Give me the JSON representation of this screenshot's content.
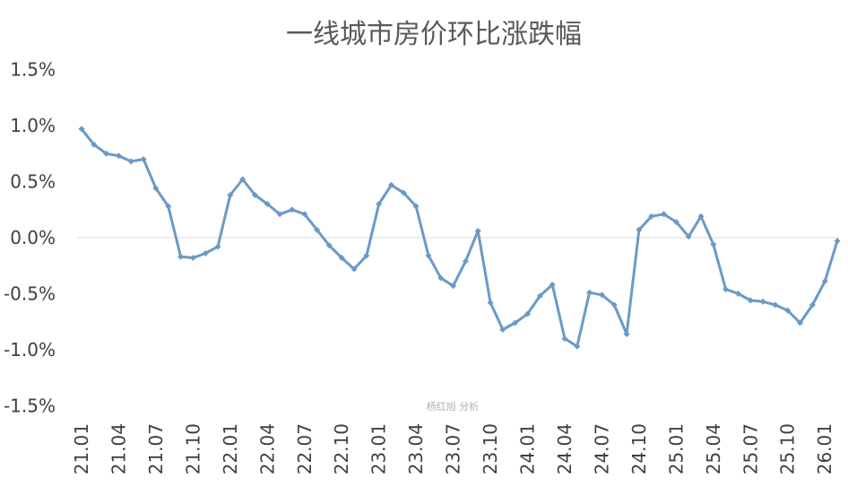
{
  "chart_data": {
    "type": "line",
    "title": "一线城市房价环比涨跌幅",
    "watermark": "杨红旭 分析",
    "xlabel": "",
    "ylabel": "",
    "ylim": [
      -1.5,
      1.5
    ],
    "y_ticks": [
      "1.5%",
      "1.0%",
      "0.5%",
      "0.0%",
      "-0.5%",
      "-1.0%",
      "-1.5%"
    ],
    "x_tick_labels": [
      "21.01",
      "21.04",
      "21.07",
      "21.10",
      "22.01",
      "22.04",
      "22.07",
      "22.10",
      "23.01",
      "23.04",
      "23.07",
      "23.10",
      "24.01",
      "24.04",
      "24.07",
      "24.10",
      "25.01",
      "25.04",
      "25.07",
      "25.10",
      "26.01"
    ],
    "grid": false,
    "zero_line": true,
    "line_color": "#6a9ac8",
    "categories": [
      "21.01",
      "21.02",
      "21.03",
      "21.04",
      "21.05",
      "21.06",
      "21.07",
      "21.08",
      "21.09",
      "21.10",
      "21.11",
      "21.12",
      "22.01",
      "22.02",
      "22.03",
      "22.04",
      "22.05",
      "22.06",
      "22.07",
      "22.08",
      "22.09",
      "22.10",
      "22.11",
      "22.12",
      "23.01",
      "23.02",
      "23.03",
      "23.04",
      "23.05",
      "23.06",
      "23.07",
      "23.08",
      "23.09",
      "23.10",
      "23.11",
      "23.12",
      "24.01",
      "24.02",
      "24.03",
      "24.04",
      "24.05",
      "24.06",
      "24.07",
      "24.08",
      "24.09",
      "24.10",
      "24.11",
      "24.12",
      "25.01",
      "25.02",
      "25.03",
      "25.04",
      "25.05",
      "25.06",
      "25.07",
      "25.08",
      "25.09",
      "25.10",
      "25.11",
      "25.12",
      "26.01",
      "26.02"
    ],
    "series": [
      {
        "values": [
          0.97,
          0.83,
          0.75,
          0.73,
          0.68,
          0.7,
          0.44,
          0.28,
          -0.17,
          -0.18,
          -0.14,
          -0.08,
          0.38,
          0.52,
          0.38,
          0.3,
          0.21,
          0.25,
          0.21,
          0.07,
          -0.07,
          -0.18,
          -0.28,
          -0.16,
          0.3,
          0.47,
          0.4,
          0.28,
          -0.16,
          -0.36,
          -0.43,
          -0.21,
          0.06,
          -0.58,
          -0.82,
          -0.76,
          -0.68,
          -0.52,
          -0.42,
          -0.9,
          -0.97,
          -0.49,
          -0.51,
          -0.6,
          -0.86,
          0.07,
          0.19,
          0.21,
          0.14,
          0.01,
          0.19,
          -0.06,
          -0.46,
          -0.5,
          -0.56,
          -0.57,
          -0.6,
          -0.65,
          -0.76,
          -0.6,
          -0.39,
          -0.03
        ]
      }
    ]
  }
}
